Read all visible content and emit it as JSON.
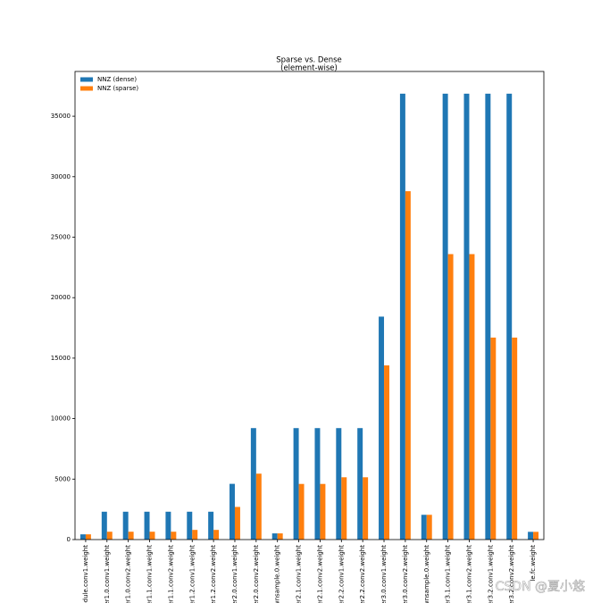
{
  "chart_data": {
    "type": "bar",
    "title": "Sparse vs. Dense",
    "subtitle": "(element-wise)",
    "categories": [
      "odule.conv1.weight",
      "yer1.0.conv1.weight",
      "yer1.0.conv2.weight",
      "yer1.1.conv1.weight",
      "yer1.1.conv2.weight",
      "yer1.2.conv1.weight",
      "yer1.2.conv2.weight",
      "yer2.0.conv1.weight",
      "yer2.0.conv2.weight",
      "wnsample.0.weight",
      "yer2.1.conv1.weight",
      "yer2.1.conv2.weight",
      "yer2.2.conv1.weight",
      "yer2.2.conv2.weight",
      "yer3.0.conv1.weight",
      "yer3.0.conv2.weight",
      "wnsample.0.weight",
      "yer3.1.conv1.weight",
      "yer3.1.conv2.weight",
      "yer3.2.conv1.weight",
      "yer3.2.conv2.weight",
      "le.fc.weight"
    ],
    "series": [
      {
        "name": "NNZ (dense)",
        "color": "#1f77b4",
        "values": [
          432,
          2304,
          2304,
          2304,
          2304,
          2304,
          2304,
          4608,
          9216,
          512,
          9216,
          9216,
          9216,
          9216,
          18432,
          36864,
          2048,
          36864,
          36864,
          36864,
          36864,
          640
        ]
      },
      {
        "name": "NNZ (sparse)",
        "color": "#ff7f0e",
        "values": [
          432,
          650,
          650,
          650,
          650,
          800,
          800,
          2700,
          5450,
          512,
          4600,
          4600,
          5150,
          5150,
          14400,
          28800,
          2048,
          23600,
          23600,
          16700,
          16700,
          640
        ]
      }
    ],
    "ylim": [
      0,
      38700
    ],
    "yticks": [
      0,
      5000,
      10000,
      15000,
      20000,
      25000,
      30000,
      35000
    ],
    "legend": "upper left",
    "watermark": "CSDN @夏小悠"
  }
}
